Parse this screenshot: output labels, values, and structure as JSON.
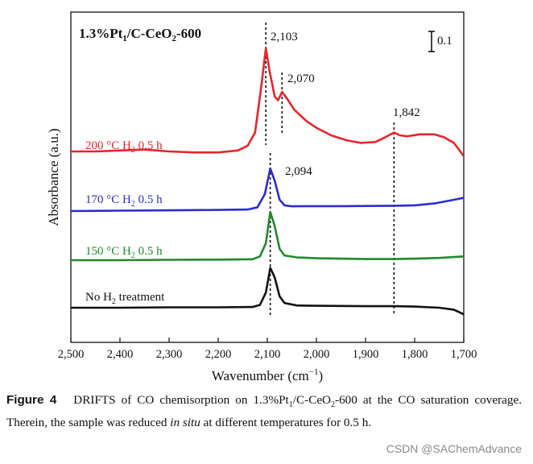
{
  "chart_data": {
    "type": "line",
    "title_main": "1.3%Pt",
    "title_sub": "1",
    "title_tail": "/C-CeO",
    "title_sub2": "2",
    "title_end": "-600",
    "xlabel_main": "Wavenumber (cm",
    "xlabel_sup": "−1",
    "xlabel_end": ")",
    "ylabel": "Absorbance (a.u.)",
    "xlim": [
      2500,
      1700
    ],
    "x_reversed": true,
    "grid": false,
    "xticks": [
      2500,
      2400,
      2300,
      2200,
      2100,
      2000,
      1900,
      1800,
      1700
    ],
    "xtick_labels": [
      "2,500",
      "2,400",
      "2,300",
      "2,200",
      "2,100",
      "2,000",
      "1,900",
      "1,800",
      "1,700"
    ],
    "scale_bar": {
      "value": 0.1,
      "label": "0.1"
    },
    "series": [
      {
        "label_main": "200 °C H",
        "label_sub": "2",
        "label_end": " 0.5 h",
        "color": "#e8242a",
        "baseline": 0.0,
        "points": [
          [
            2500,
            0.0
          ],
          [
            2450,
            0.0
          ],
          [
            2400,
            0.005
          ],
          [
            2350,
            0.01
          ],
          [
            2300,
            0.0
          ],
          [
            2250,
            -0.005
          ],
          [
            2200,
            -0.005
          ],
          [
            2160,
            0.005
          ],
          [
            2140,
            0.03
          ],
          [
            2125,
            0.1
          ],
          [
            2112,
            0.35
          ],
          [
            2103,
            0.545
          ],
          [
            2095,
            0.42
          ],
          [
            2085,
            0.29
          ],
          [
            2078,
            0.27
          ],
          [
            2070,
            0.315
          ],
          [
            2060,
            0.28
          ],
          [
            2045,
            0.22
          ],
          [
            2020,
            0.16
          ],
          [
            2000,
            0.125
          ],
          [
            1970,
            0.085
          ],
          [
            1940,
            0.06
          ],
          [
            1910,
            0.045
          ],
          [
            1880,
            0.05
          ],
          [
            1860,
            0.075
          ],
          [
            1842,
            0.1
          ],
          [
            1830,
            0.085
          ],
          [
            1815,
            0.08
          ],
          [
            1790,
            0.09
          ],
          [
            1760,
            0.09
          ],
          [
            1740,
            0.075
          ],
          [
            1720,
            0.045
          ],
          [
            1700,
            -0.025
          ]
        ]
      },
      {
        "label_main": "170 °C H",
        "label_sub": "2",
        "label_end": " 0.5 h",
        "color": "#2b2bd6",
        "baseline": 0.0,
        "points": [
          [
            2500,
            0.0
          ],
          [
            2400,
            0.002
          ],
          [
            2300,
            0.004
          ],
          [
            2200,
            0.006
          ],
          [
            2140,
            0.008
          ],
          [
            2120,
            0.02
          ],
          [
            2105,
            0.09
          ],
          [
            2094,
            0.225
          ],
          [
            2085,
            0.16
          ],
          [
            2075,
            0.06
          ],
          [
            2065,
            0.03
          ],
          [
            2050,
            0.025
          ],
          [
            2000,
            0.026
          ],
          [
            1950,
            0.026
          ],
          [
            1900,
            0.027
          ],
          [
            1842,
            0.028
          ],
          [
            1800,
            0.03
          ],
          [
            1760,
            0.04
          ],
          [
            1730,
            0.055
          ],
          [
            1700,
            0.07
          ]
        ]
      },
      {
        "label_main": "150 °C H",
        "label_sub": "2",
        "label_end": " 0.5 h",
        "color": "#1f8a2a",
        "baseline": 0.0,
        "points": [
          [
            2500,
            0.0
          ],
          [
            2400,
            0.0
          ],
          [
            2300,
            0.002
          ],
          [
            2200,
            0.003
          ],
          [
            2130,
            0.005
          ],
          [
            2115,
            0.02
          ],
          [
            2103,
            0.09
          ],
          [
            2094,
            0.255
          ],
          [
            2085,
            0.18
          ],
          [
            2075,
            0.06
          ],
          [
            2065,
            0.025
          ],
          [
            2040,
            0.015
          ],
          [
            2000,
            0.01
          ],
          [
            1900,
            0.006
          ],
          [
            1842,
            0.006
          ],
          [
            1800,
            0.008
          ],
          [
            1750,
            0.012
          ],
          [
            1700,
            0.02
          ]
        ]
      },
      {
        "label_main": "No H",
        "label_sub": "2",
        "label_end": " treatment",
        "color": "#111111",
        "baseline": 0.0,
        "points": [
          [
            2500,
            0.0
          ],
          [
            2400,
            0.0
          ],
          [
            2300,
            0.002
          ],
          [
            2200,
            0.002
          ],
          [
            2130,
            0.004
          ],
          [
            2115,
            0.015
          ],
          [
            2103,
            0.08
          ],
          [
            2094,
            0.21
          ],
          [
            2085,
            0.16
          ],
          [
            2075,
            0.06
          ],
          [
            2065,
            0.025
          ],
          [
            2040,
            0.012
          ],
          [
            2000,
            0.01
          ],
          [
            1900,
            0.008
          ],
          [
            1842,
            0.008
          ],
          [
            1800,
            0.006
          ],
          [
            1750,
            0.0
          ],
          [
            1720,
            -0.01
          ],
          [
            1700,
            -0.035
          ]
        ]
      }
    ],
    "annotations": [
      {
        "text": "2,103",
        "x": 2103
      },
      {
        "text": "2,070",
        "x": 2070
      },
      {
        "text": "2,094",
        "x": 2094
      },
      {
        "text": "1,842",
        "x": 1842
      }
    ]
  },
  "caption": {
    "label": "Figure 4",
    "text_1": "DRIFTS of CO chemisorption on 1.3%Pt",
    "sub_1": "1",
    "text_2": "/C-CeO",
    "sub_2": "2",
    "text_3": "-600 at the CO saturation coverage. Therein, the sample was reduced ",
    "italic": "in situ",
    "text_4": " at different temperatures for 0.5 h."
  },
  "watermark": "CSDN @SAChemAdvance"
}
